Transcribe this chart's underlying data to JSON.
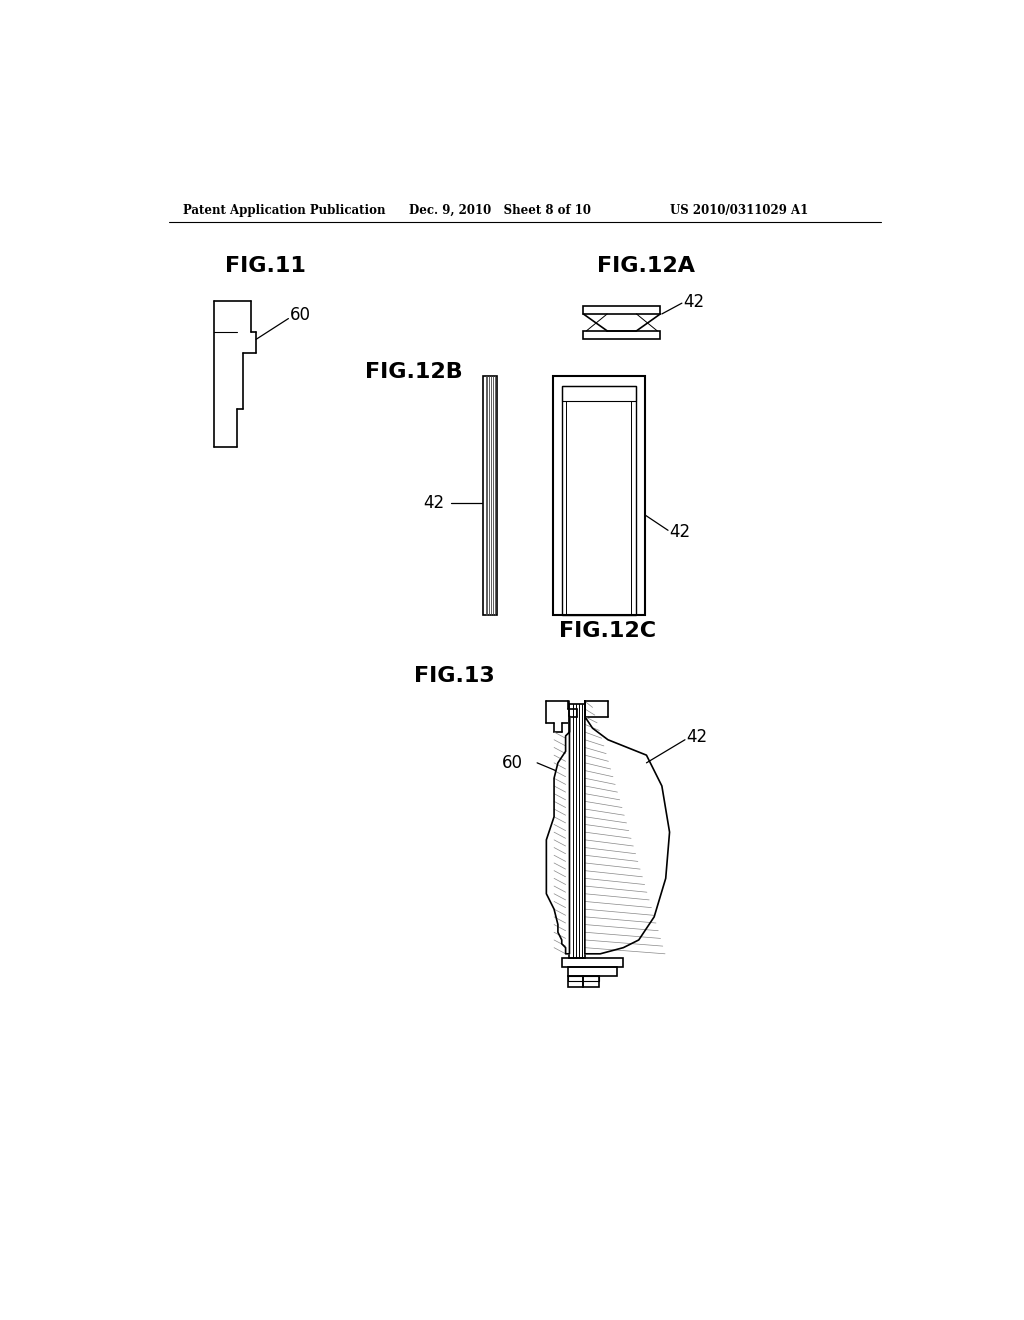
{
  "background_color": "#ffffff",
  "header_left": "Patent Application Publication",
  "header_center": "Dec. 9, 2010   Sheet 8 of 10",
  "header_right": "US 2010/0311029 A1",
  "fig11_label": "FIG.11",
  "fig12a_label": "FIG.12A",
  "fig12b_label": "FIG.12B",
  "fig12c_label": "FIG.12C",
  "fig13_label": "FIG.13",
  "ref_60": "60",
  "ref_42": "42"
}
